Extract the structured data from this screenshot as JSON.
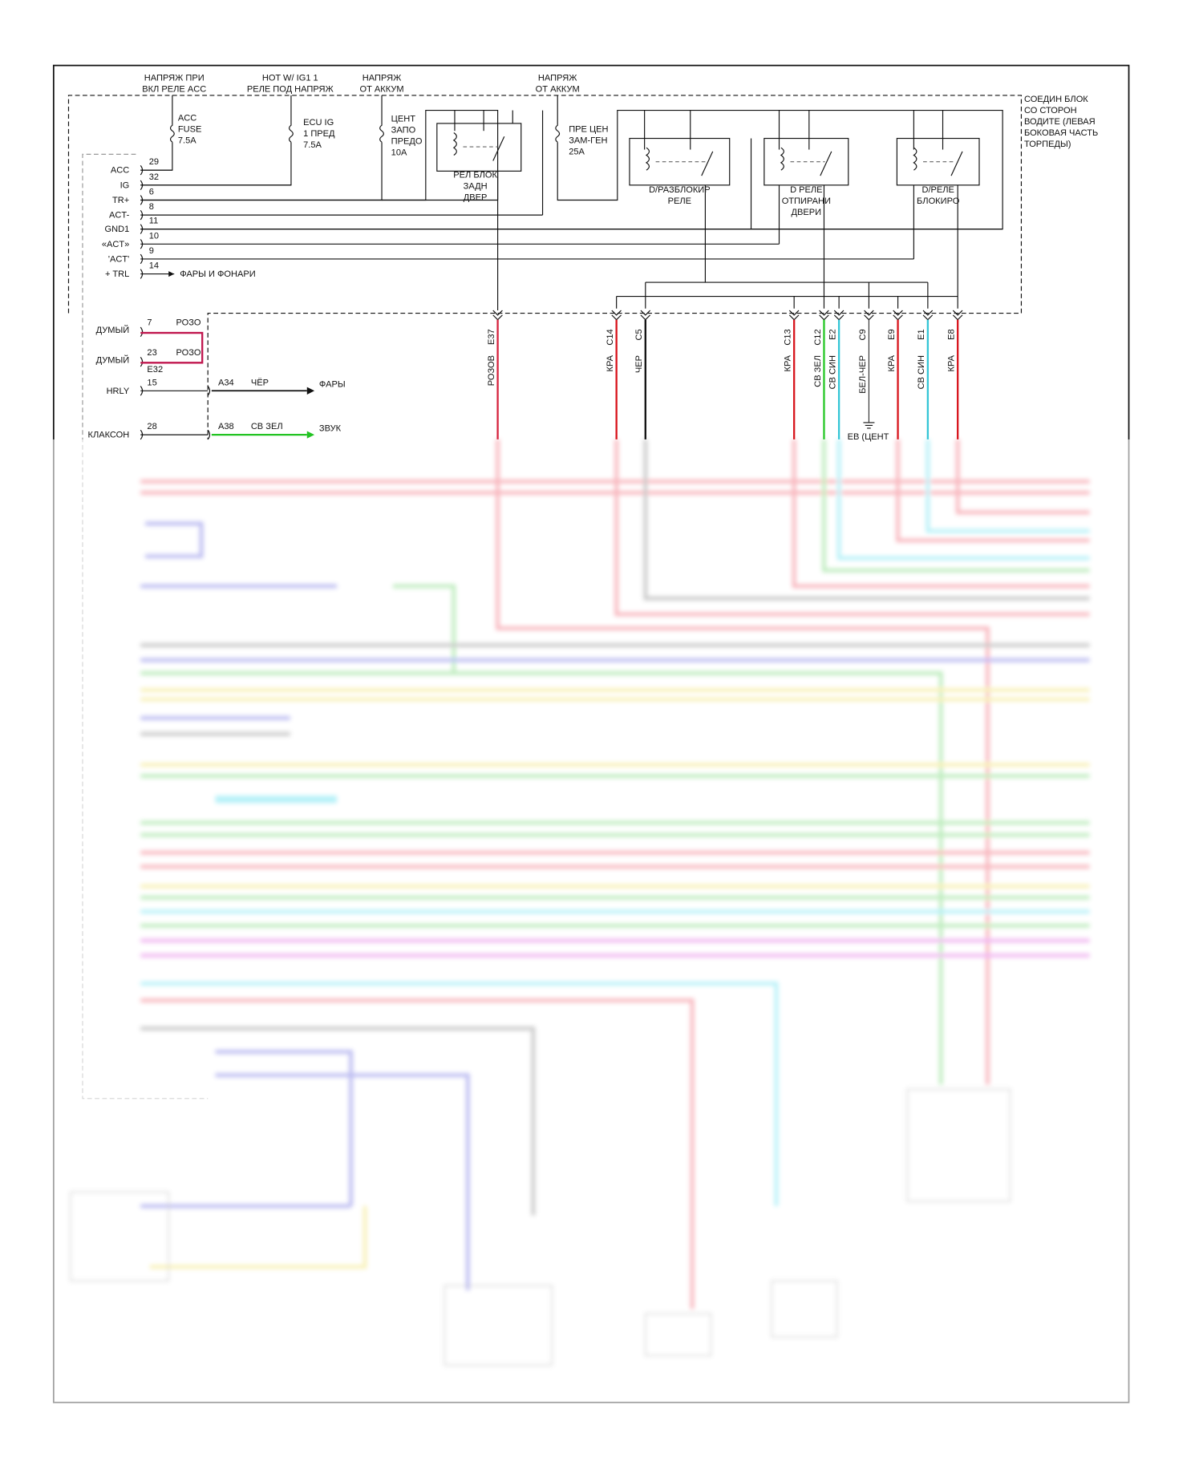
{
  "supplies": [
    {
      "lines": [
        "НАПРЯЖ ПРИ",
        "ВКЛ РЕЛЕ ACC"
      ]
    },
    {
      "lines": [
        "HOT W/ IG1 1",
        "РЕЛЕ ПОД НАПРЯЖ"
      ]
    },
    {
      "lines": [
        "НАПРЯЖ",
        "ОТ АККУМ"
      ]
    },
    {
      "lines": [
        "НАПРЯЖ",
        "ОТ АККУМ"
      ]
    }
  ],
  "fuses": [
    {
      "lines": [
        "ACC",
        "FUSE",
        "7.5A"
      ]
    },
    {
      "lines": [
        "ECU IG",
        "1 ПРЕД",
        "7.5A"
      ]
    },
    {
      "lines": [
        "ЦЕНТ",
        "ЗАПО",
        "ПРЕДО",
        "10A"
      ]
    },
    {
      "lines": [
        "ПРЕ ЦЕН",
        "ЗАМ-ГЕН",
        "25A"
      ]
    }
  ],
  "junction_block": {
    "lines": [
      "СОЕДИН БЛОК",
      "СО СТОРОН",
      "ВОДИТЕ (ЛЕВАЯ",
      "БОКОВАЯ ЧАСТЬ",
      "ТОРПЕДЫ)"
    ]
  },
  "relays": [
    {
      "lines": [
        "РЕЛ БЛОК",
        "ЗАДН",
        "ДВЕР"
      ]
    },
    {
      "lines": [
        "D/РАЗБЛОКИР",
        "РЕЛЕ"
      ]
    },
    {
      "lines": [
        "D РЕЛЕ",
        "ОТПИРАНИ",
        "ДВЕРИ"
      ]
    },
    {
      "lines": [
        "D/РЕЛЕ",
        "БЛОКИРО"
      ]
    }
  ],
  "pins": [
    {
      "name": "ACC",
      "number": 29
    },
    {
      "name": "IG",
      "number": 32
    },
    {
      "name": "TR+",
      "number": 6
    },
    {
      "name": "ACT-",
      "number": 8
    },
    {
      "name": "GND1",
      "number": 11
    },
    {
      "name": "«ACT»",
      "number": 10
    },
    {
      "name": "'ACT'",
      "number": 9
    },
    {
      "name": "+ TRL",
      "number": 14
    }
  ],
  "trl_note": "ФАРЫ И ФОНАРИ",
  "dummy": [
    {
      "name": "ДУМЫЙ",
      "number": 7,
      "wire": "РОЗО"
    },
    {
      "name": "ДУМЫЙ",
      "number": 23,
      "wire": "РОЗО"
    }
  ],
  "dummy_connector": "E32",
  "outputs": [
    {
      "name": "HRLY",
      "number": 15,
      "connector": "A34",
      "wire": "ЧЁР",
      "target": "ФАРЫ"
    },
    {
      "name": "КЛАКСОН",
      "number": 28,
      "connector": "A38",
      "wire": "СВ ЗЕЛ",
      "target": "ЗВУК"
    }
  ],
  "connectors": [
    {
      "id": "E37",
      "wire": "РОЗОВ"
    },
    {
      "id": "C14",
      "wire": "КРА"
    },
    {
      "id": "C5",
      "wire": "ЧЕР"
    },
    {
      "id": "C13",
      "wire": "КРА"
    },
    {
      "id": "C12",
      "wire": "СВ ЗЕЛ"
    },
    {
      "id": "E2",
      "wire": "СВ СИН"
    },
    {
      "id": "C9",
      "wire": "БЕЛ-ЧЕР"
    },
    {
      "id": "E9",
      "wire": "КРА"
    },
    {
      "id": "E1",
      "wire": "СВ СИН"
    },
    {
      "id": "E8",
      "wire": "КРА"
    }
  ],
  "ground_label": "ЕВ (ЦЕНТ"
}
